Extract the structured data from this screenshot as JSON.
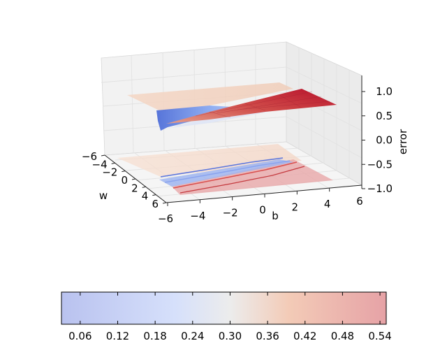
{
  "chart_data": {
    "type": "surface3d",
    "title": "",
    "xlabel": "w",
    "ylabel": "b",
    "zlabel": "error",
    "xlim": [
      -6,
      6
    ],
    "ylim": [
      -6,
      6
    ],
    "zlim": [
      -1.0,
      1.0
    ],
    "x_ticks": [
      "−6",
      "−4",
      "−2",
      "0",
      "2",
      "4",
      "6"
    ],
    "y_ticks": [
      "−6",
      "−4",
      "−2",
      "0",
      "2",
      "4",
      "6"
    ],
    "z_ticks": [
      "−1.0",
      "−0.5",
      "0.0",
      "0.5",
      "1.0"
    ],
    "grid": true,
    "colormap": "coolwarm",
    "surface": {
      "description_values": "sigmoid-shaped error surface over w and b; plateau near 0.30 for negative w, rising to about 1.0 for positive w and positive b, dipping to about 0.05 for positive w and negative b",
      "projected_contour_at_z": -1.0
    },
    "colorbar": {
      "range": [
        0.03,
        0.55
      ],
      "ticks": [
        "0.06",
        "0.12",
        "0.18",
        "0.24",
        "0.30",
        "0.36",
        "0.42",
        "0.48",
        "0.54"
      ],
      "tick_values": [
        0.06,
        0.12,
        0.18,
        0.24,
        0.3,
        0.36,
        0.42,
        0.48,
        0.54
      ],
      "orientation": "horizontal"
    }
  },
  "colors": {
    "low": "#3b4cc0",
    "mid": "#dddddd",
    "high": "#b40426",
    "pane": "#f2f2f2",
    "grid": "#e6e6e6"
  }
}
